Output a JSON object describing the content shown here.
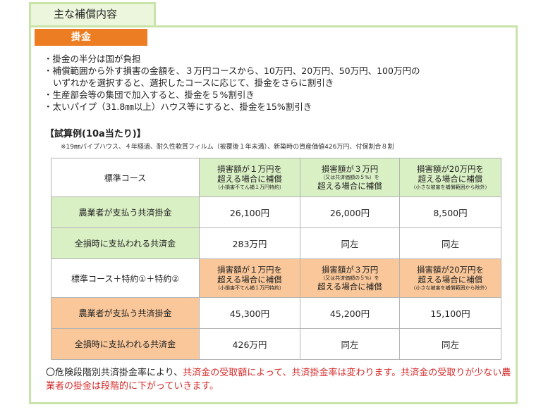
{
  "section_tab": "主な補償内容",
  "premium_badge": "掛金",
  "bullets": {
    "b1": "掛金の半分は国が負担",
    "b2_line1": "補償範囲から外す損害の金額を、３万円コースから、10万円、20万円、50万円、100万円の",
    "b2_line2": "いずれかを選択すると、選択したコースに応じて、掛金をさらに割引き",
    "b3": "生産部会等の集団で加入すると、掛金を５%割引き",
    "b4": "太いパイプ（31.8㎜以上）ハウス等にすると、掛金を15%割引き"
  },
  "example_heading": "【試算例(10a当たり)】",
  "example_note": "※19㎜パイプハウス、４年経過、耐久性軟質フィルム（被覆後１年未満）、新築時の資産価値426万円、付保割合８割",
  "table": {
    "standard": {
      "label": "標準コース",
      "col1_main": "損害額が１万円を\n超える場合に補償",
      "col1_sub": "（小損害不てん補１万円特約）",
      "col2_main_a": "損害額が３万円",
      "col2_sub": "（又は共済価額の５%）を",
      "col2_main_b": "超える場合に補償",
      "col3_main": "損害額が20万円を\n超える場合に補償",
      "col3_sub": "（小さな被害を補償範囲から除外）",
      "premium_label": "農業者が支払う共済掛金",
      "premium_values": [
        "26,100円",
        "26,000円",
        "8,500円"
      ],
      "payout_label": "全損時に支払われる共済金",
      "payout_values": [
        "283万円",
        "同左",
        "同左"
      ]
    },
    "special": {
      "label": "標準コース＋特約①＋特約②",
      "col1_main": "損害額が１万円を\n超える場合に補償",
      "col1_sub": "（小損害不てん補１万円特約）",
      "col2_main_a": "損害額が３万円",
      "col2_sub": "（又は共済価額の５%）を",
      "col2_main_b": "超える場合に補償",
      "col3_main": "損害額が20万円を\n超える場合に補償",
      "col3_sub": "（小さな被害を補償範囲から除外）",
      "premium_label": "農業者が支払う共済掛金",
      "premium_values": [
        "45,300円",
        "45,200円",
        "15,100円"
      ],
      "payout_label": "全損時に支払われる共済金",
      "payout_values": [
        "426万円",
        "同左",
        "同左"
      ]
    }
  },
  "footer": {
    "prefix": "〇危険段階別共済掛金率により、",
    "red_text": "共済金の受取額によって、共済掛金率は変わります。共済金の受取りが少ない農業者の掛金は段階的に下がっていきます。"
  },
  "colors": {
    "frame_green": "#c9e4a8",
    "badge_orange": "#ec7d22",
    "row_green": "#d9efc4",
    "row_orange": "#f9c799",
    "emphasis_red": "#d62828"
  }
}
